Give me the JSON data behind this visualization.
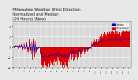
{
  "title": "Milwaukee Weather Wind Direction\nNormalized and Median\n(24 Hours) (New)",
  "title_fontsize": 3.5,
  "bg_color": "#e8e8e8",
  "plot_bg_color": "#d8d8d8",
  "grid_color": "#ffffff",
  "bar_color": "#dd0000",
  "line_color": "#0000cc",
  "legend_labels": [
    "Median",
    "Normalized"
  ],
  "legend_colors": [
    "#0000cc",
    "#dd0000"
  ],
  "ylim": [
    -4,
    5
  ],
  "yticks": [
    -4,
    -2,
    0,
    2,
    4
  ],
  "n_points": 150,
  "x_data": [
    0,
    1,
    2,
    3,
    4,
    5,
    6,
    7,
    8,
    9,
    10,
    11,
    12,
    13,
    14,
    15,
    16,
    17,
    18,
    19,
    20,
    21,
    22,
    23,
    24,
    25,
    26,
    27,
    28,
    29,
    30,
    31,
    32,
    33,
    34,
    35,
    36,
    37,
    38,
    39,
    40,
    41,
    42,
    43,
    44,
    45,
    46,
    47,
    48,
    49,
    50,
    51,
    52,
    53,
    54,
    55,
    56,
    57,
    58,
    59,
    60,
    61,
    62,
    63,
    64,
    65,
    66,
    67,
    68,
    69,
    70,
    71,
    72,
    73,
    74,
    75,
    76,
    77,
    78,
    79,
    80,
    81,
    82,
    83,
    84,
    85,
    86,
    87,
    88,
    89,
    90,
    91,
    92,
    93,
    94,
    95,
    96,
    97,
    98,
    99,
    100,
    101,
    102,
    103,
    104,
    105,
    106,
    107,
    108,
    109,
    110,
    111,
    112,
    113,
    114,
    115,
    116,
    117,
    118,
    119,
    120,
    121,
    122,
    123,
    124,
    125,
    126,
    127,
    128,
    129,
    130,
    131,
    132,
    133,
    134,
    135,
    136,
    137,
    138,
    139,
    140,
    141,
    142,
    143,
    144,
    145,
    146,
    147,
    148,
    149
  ],
  "bar_data": [
    0.1,
    -0.2,
    0.3,
    -0.1,
    0.2,
    0.1,
    -0.3,
    0.4,
    -0.2,
    0.3,
    0.1,
    0.5,
    -0.6,
    -0.2,
    0.7,
    -0.5,
    -0.3,
    0.8,
    -1.0,
    -0.5,
    -1.2,
    1.5,
    -0.8,
    -1.5,
    1.0,
    -2.5,
    1.5,
    -2.0,
    1.2,
    -1.5,
    -1.0,
    -0.5,
    -0.3,
    -0.2,
    -0.1,
    -1.5,
    -3.5,
    -4.0,
    -3.5,
    -4.5,
    -3.0,
    -3.5,
    -3.8,
    -4.2,
    -3.9,
    -3.2,
    -4.0,
    -3.5,
    -2.8,
    -3.2,
    -3.5,
    -3.0,
    -3.8,
    -2.5,
    -3.0,
    -2.8,
    -3.5,
    -2.0,
    -2.5,
    -2.8,
    -3.5,
    -3.0,
    -3.5,
    -4.0,
    -3.5,
    -4.5,
    -3.0,
    -3.5,
    -3.8,
    -4.2,
    -2.5,
    -3.0,
    -2.0,
    -1.5,
    -2.5,
    -2.0,
    -1.5,
    -2.8,
    -2.5,
    -2.0,
    -1.5,
    -2.0,
    -2.5,
    -2.0,
    -1.0,
    -1.5,
    -2.0,
    -1.5,
    -1.0,
    -0.5,
    -1.0,
    -1.5,
    -1.0,
    -0.5,
    -1.0,
    -0.8,
    -0.5,
    -0.3,
    -0.2,
    -0.5,
    1.0,
    0.5,
    1.0,
    1.5,
    0.8,
    1.2,
    1.5,
    1.0,
    1.5,
    1.2,
    1.8,
    2.0,
    2.5,
    1.8,
    2.0,
    2.5,
    2.8,
    2.5,
    2.0,
    2.5,
    2.8,
    2.5,
    3.0,
    2.8,
    2.5,
    3.0,
    3.2,
    2.8,
    3.0,
    2.5,
    3.0,
    3.5,
    3.0,
    2.5,
    3.0,
    2.5,
    2.8,
    2.0,
    2.5,
    2.8,
    3.0,
    3.2,
    3.0,
    2.8,
    3.0,
    3.5,
    3.0,
    2.8,
    3.2,
    3.0
  ],
  "line_data": [
    0.05,
    -0.1,
    0.15,
    -0.05,
    0.1,
    0.05,
    -0.15,
    0.2,
    -0.1,
    0.15,
    0.05,
    0.25,
    -0.3,
    -0.1,
    0.35,
    -0.25,
    -0.15,
    0.4,
    -0.5,
    -0.25,
    -0.6,
    0.75,
    -0.4,
    -0.75,
    0.5,
    -1.25,
    0.75,
    -1.0,
    0.6,
    -0.75,
    -0.5,
    -0.25,
    -0.15,
    -0.1,
    -0.05,
    -0.75,
    -1.75,
    -2.0,
    -1.75,
    -2.25,
    -1.5,
    -1.75,
    -1.9,
    -2.1,
    -1.95,
    -1.6,
    -2.0,
    -1.75,
    -1.4,
    -1.6,
    -1.75,
    -1.5,
    -1.9,
    -1.25,
    -1.5,
    -1.4,
    -1.75,
    -1.0,
    -1.25,
    -1.4,
    -1.75,
    -1.5,
    -1.75,
    -2.0,
    -1.75,
    -2.25,
    -1.5,
    -1.75,
    -1.9,
    -2.1,
    -1.25,
    -1.5,
    -1.0,
    -0.75,
    -1.25,
    -1.0,
    -0.75,
    -1.4,
    -1.25,
    -1.0,
    -0.75,
    -1.0,
    -1.25,
    -1.0,
    -0.5,
    -0.75,
    -1.0,
    -0.75,
    -0.5,
    -0.25,
    -0.5,
    -0.75,
    -0.5,
    -0.25,
    -0.5,
    -0.4,
    -0.25,
    -0.15,
    -0.1,
    -0.25,
    0.5,
    0.25,
    0.5,
    0.75,
    0.4,
    0.6,
    0.75,
    0.5,
    0.75,
    0.6,
    0.9,
    1.0,
    1.25,
    0.9,
    1.0,
    1.25,
    1.4,
    1.25,
    1.0,
    1.25,
    1.4,
    1.25,
    1.5,
    1.4,
    1.25,
    1.5,
    1.6,
    1.4,
    1.5,
    1.25,
    1.5,
    1.75,
    1.5,
    1.25,
    1.5,
    1.25,
    1.4,
    1.0,
    1.25,
    1.4,
    1.5,
    1.6,
    1.5,
    1.4,
    1.5,
    1.75,
    1.5,
    1.4,
    1.6,
    1.5
  ]
}
